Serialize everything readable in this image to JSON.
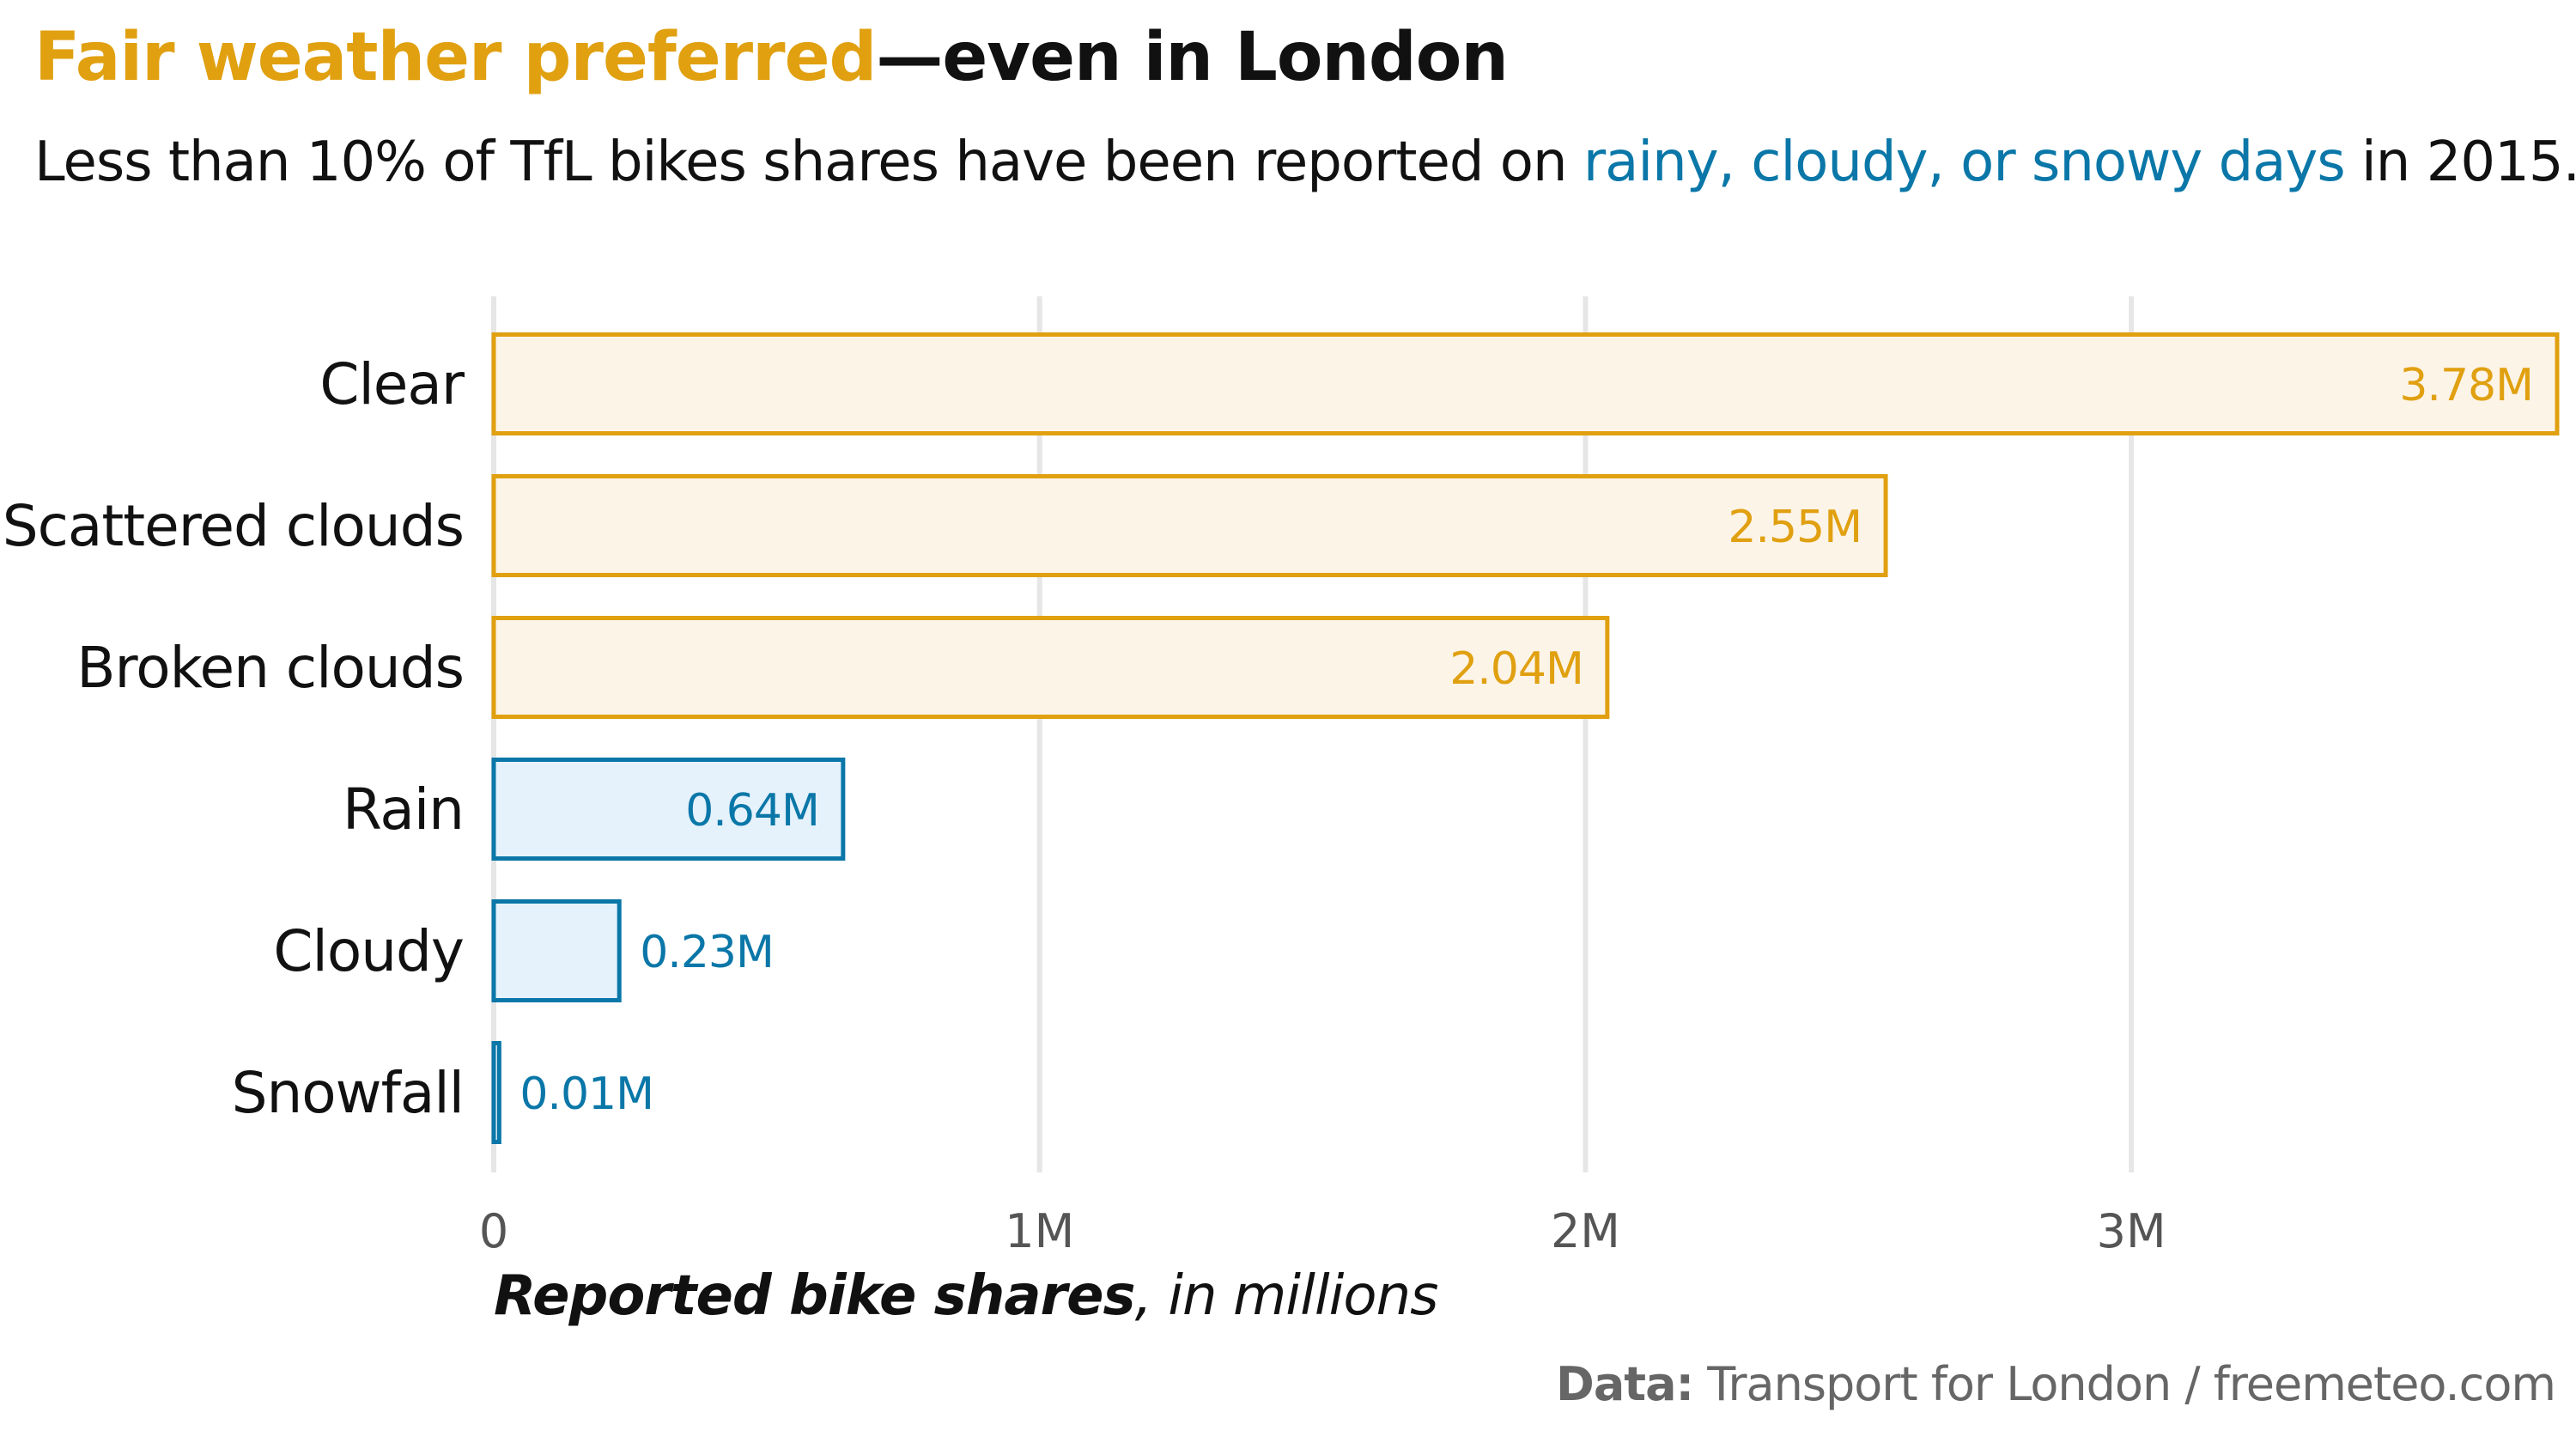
{
  "title": {
    "highlight": "Fair weather preferred",
    "rest": "—even in London"
  },
  "subtitle": {
    "before": "Less than 10% of TfL bikes shares have been reported on ",
    "highlight": "rainy, cloudy, or snowy days",
    "after": " in 2015."
  },
  "caption": {
    "bold": "Data:",
    "rest": " Transport for London / freemeteo.com"
  },
  "colors": {
    "fair_stroke": "#E0A010",
    "fair_fill": "#FDF4E8",
    "bad_stroke": "#0A77A8",
    "bad_fill": "#E5F2FB",
    "grid": "#E6E6E6"
  },
  "chart_data": {
    "type": "bar",
    "orientation": "horizontal",
    "categories": [
      "Clear",
      "Scattered clouds",
      "Broken clouds",
      "Rain",
      "Cloudy",
      "Snowfall"
    ],
    "values": [
      3.78,
      2.55,
      2.04,
      0.64,
      0.23,
      0.01
    ],
    "value_labels": [
      "3.78M",
      "2.55M",
      "2.04M",
      "0.64M",
      "0.23M",
      "0.01M"
    ],
    "groups": [
      "fair",
      "fair",
      "fair",
      "bad",
      "bad",
      "bad"
    ],
    "xlim": [
      0,
      3.78
    ],
    "xticks": [
      0,
      1,
      2,
      3
    ],
    "xtick_labels": [
      "0",
      "1M",
      "2M",
      "3M"
    ],
    "xlabel_bold": "Reported bike shares",
    "xlabel_rest": ", in millions",
    "grid": "vertical"
  }
}
